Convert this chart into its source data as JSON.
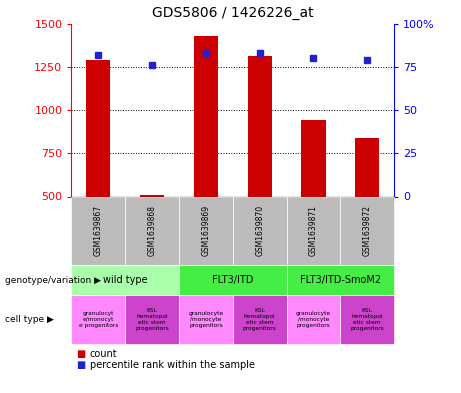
{
  "title": "GDS5806 / 1426226_at",
  "samples": [
    "GSM1639867",
    "GSM1639868",
    "GSM1639869",
    "GSM1639870",
    "GSM1639871",
    "GSM1639872"
  ],
  "counts": [
    1290,
    510,
    1430,
    1310,
    940,
    840
  ],
  "percentile_ranks": [
    82,
    76,
    83,
    83,
    80,
    79
  ],
  "ylim_left": [
    500,
    1500
  ],
  "ylim_right": [
    0,
    100
  ],
  "yticks_left": [
    500,
    750,
    1000,
    1250,
    1500
  ],
  "yticks_right": [
    0,
    25,
    50,
    75,
    100
  ],
  "ytick_right_labels": [
    "0",
    "25",
    "50",
    "75",
    "100%"
  ],
  "bar_color": "#cc0000",
  "dot_color": "#2222cc",
  "gsm_bg_color": "#bbbbbb",
  "geno_groups": [
    {
      "label": "wild type",
      "start": 0,
      "end": 2,
      "color": "#aaffaa"
    },
    {
      "label": "FLT3/ITD",
      "start": 2,
      "end": 4,
      "color": "#44ee44"
    },
    {
      "label": "FLT3/ITD-SmoM2",
      "start": 4,
      "end": 6,
      "color": "#44ee44"
    }
  ],
  "cell_colors": [
    "#ff88ff",
    "#cc44cc",
    "#ff88ff",
    "#cc44cc",
    "#ff88ff",
    "#cc44cc"
  ],
  "cell_labels": [
    "granulocyt\ne/monocyt\ne progenitors",
    "KSL\nhematopoi\netic stem\nprogenitors",
    "granulocyte\n/monocyte\nprogenitors",
    "KSL\nhematopoi\netic stem\nprogenitors",
    "granulocyte\n/monocyte\nprogenitors",
    "KSL\nhematopoi\netic stem\nprogenitors"
  ],
  "genotype_label": "genotype/variation",
  "celltype_label": "cell type",
  "legend_count_label": "count",
  "legend_pct_label": "percentile rank within the sample"
}
